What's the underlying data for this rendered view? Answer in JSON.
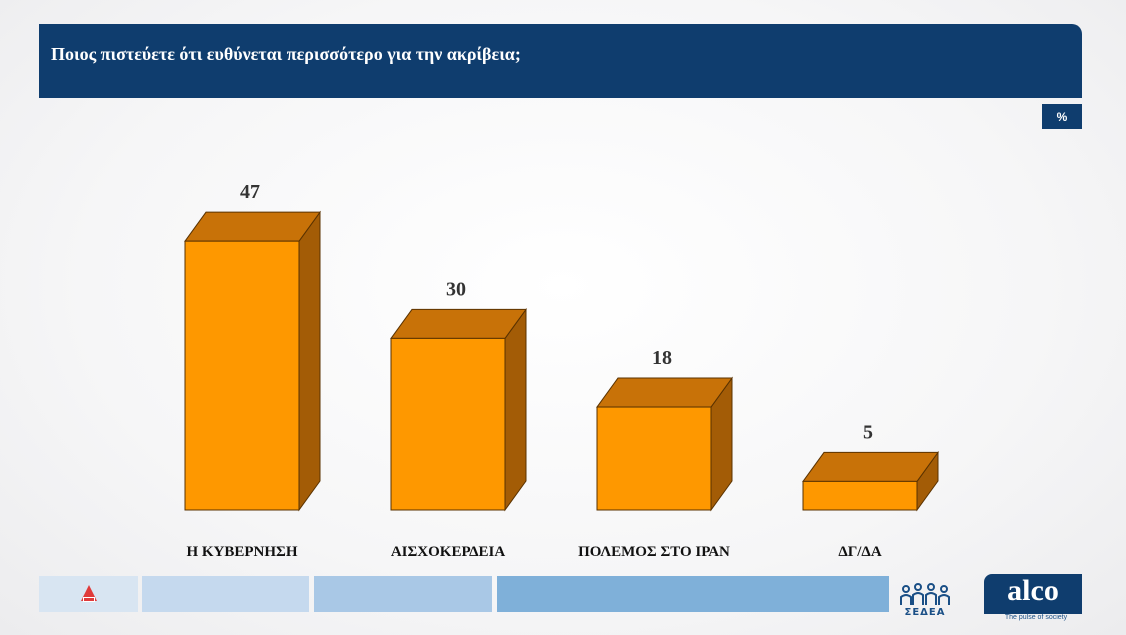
{
  "header": {
    "title": "Ποιος πιστεύετε ότι ευθύνεται περισσότερο για την ακρίβεια;"
  },
  "unit_badge": "%",
  "chart_data": {
    "type": "bar",
    "style": "3d",
    "title": "Ποιος πιστεύετε ότι ευθύνεται περισσότερο για την ακρίβεια;",
    "categories": [
      "Η ΚΥΒΕΡΝΗΣΗ",
      "ΑΙΣΧΟΚΕΡΔΕΙΑ",
      "ΠΟΛΕΜΟΣ ΣΤΟ ΙΡΑΝ",
      "ΔΓ/ΔΑ"
    ],
    "values": [
      47,
      30,
      18,
      5
    ],
    "unit": "%",
    "ylim": [
      0,
      50
    ],
    "grid": false,
    "colors": {
      "front": "#fe9800",
      "top": "#c87208",
      "side": "#a35c06",
      "edge": "#5a3200"
    }
  },
  "footer": {
    "strip_colors": [
      "#c5d9ee",
      "#a9c8e6",
      "#7fb0d9"
    ],
    "sedea": "ΣΕΔΕΑ",
    "alco": "alco",
    "alco_tagline": "The pulse of society"
  }
}
